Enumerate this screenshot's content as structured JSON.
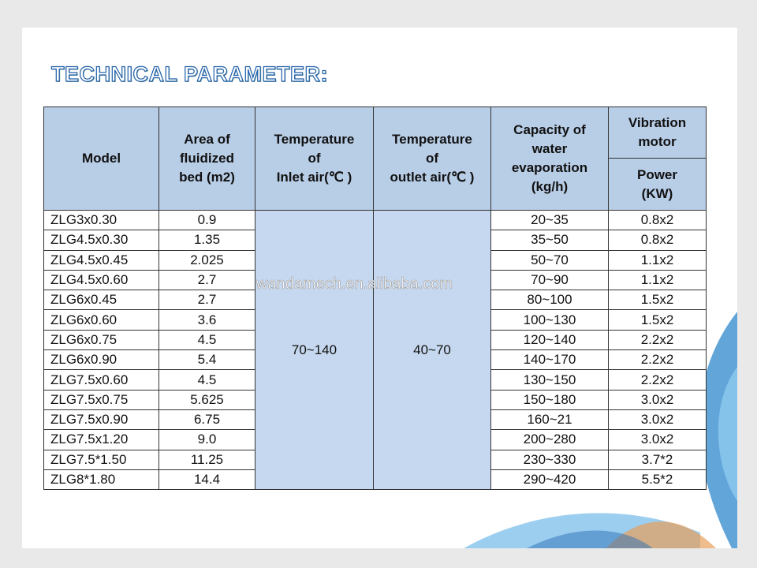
{
  "title": "TECHNICAL PARAMETER:",
  "watermark": "wandamech.en.alibaba.com",
  "table": {
    "headers": {
      "model": "Model",
      "area": "Area of\nfluidized\nbed (m2)",
      "inlet": "Temperature\nof\nInlet air(℃ )",
      "outlet": "Temperature\nof\noutlet air(℃ )",
      "capacity": "Capacity of\nwater\nevaporation\n(kg/h)",
      "vibration": "Vibration\nmotor",
      "power": "Power\n(KW)"
    },
    "inlet_value": "70~140",
    "outlet_value": "40~70",
    "rows": [
      [
        "ZLG3x0.30",
        "0.9",
        "20~35",
        "0.8x2"
      ],
      [
        "ZLG4.5x0.30",
        "1.35",
        "35~50",
        "0.8x2"
      ],
      [
        "ZLG4.5x0.45",
        "2.025",
        "50~70",
        "1.1x2"
      ],
      [
        "ZLG4.5x0.60",
        "2.7",
        "70~90",
        "1.1x2"
      ],
      [
        "ZLG6x0.45",
        "2.7",
        "80~100",
        "1.5x2"
      ],
      [
        "ZLG6x0.60",
        "3.6",
        "100~130",
        "1.5x2"
      ],
      [
        "ZLG6x0.75",
        "4.5",
        "120~140",
        "2.2x2"
      ],
      [
        "ZLG6x0.90",
        "5.4",
        "140~170",
        "2.2x2"
      ],
      [
        "ZLG7.5x0.60",
        "4.5",
        "130~150",
        "2.2x2"
      ],
      [
        "ZLG7.5x0.75",
        "5.625",
        "150~180",
        "3.0x2"
      ],
      [
        "ZLG7.5x0.90",
        "6.75",
        "160~21",
        "3.0x2"
      ],
      [
        "ZLG7.5x1.20",
        "9.0",
        "200~280",
        "3.0x2"
      ],
      [
        "ZLG7.5*1.50",
        "11.25",
        "230~330",
        "3.7*2"
      ],
      [
        "ZLG8*1.80",
        "14.4",
        "290~420",
        "5.5*2"
      ]
    ]
  }
}
